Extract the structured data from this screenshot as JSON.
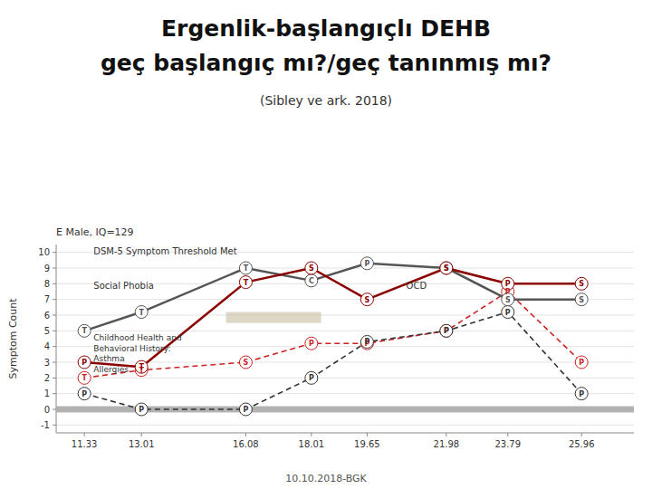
{
  "chart_data": {
    "type": "line",
    "title": "Ergenlik-başlangıçlı DEHB\ngeç başlangıç mı?/geç tanınmış mı?",
    "subtitle": "(Sibley ve ark. 2018)",
    "caption": "E Male, IQ=129",
    "footer": "10.10.2018-BGK",
    "ylabel": "Symptom Count",
    "x": [
      11.33,
      13.01,
      16.08,
      18.01,
      19.65,
      21.98,
      23.79,
      25.96
    ],
    "xlim": [
      10.5,
      27.5
    ],
    "ylim": [
      -1.5,
      10.5
    ],
    "xticks": [
      11.33,
      13.01,
      16.08,
      18.01,
      19.65,
      21.98,
      23.79,
      25.96
    ],
    "yticks": [
      -1,
      0,
      1,
      2,
      3,
      4,
      5,
      6,
      7,
      8,
      9,
      10
    ],
    "grid": true,
    "series": [
      {
        "color": "#555555",
        "line_style": "solid",
        "values": [
          5.0,
          6.2,
          9.0,
          8.2,
          9.3,
          9.0,
          7.0,
          7.0
        ],
        "point_labels": [
          "T",
          "T",
          "T",
          "C",
          "P",
          "S",
          "S",
          "S"
        ]
      },
      {
        "color": "#8b0000",
        "line_style": "solid",
        "values": [
          3.0,
          2.7,
          8.1,
          9.0,
          7.0,
          9.0,
          8.0,
          8.0
        ],
        "point_labels": [
          "P",
          "T",
          "T",
          "S",
          "S",
          "S",
          "P",
          "S"
        ]
      },
      {
        "color": "#cc2222",
        "line_style": "dashed",
        "values": [
          2.0,
          2.5,
          3.0,
          4.2,
          4.2,
          5.0,
          7.5,
          3.0
        ],
        "point_labels": [
          "T",
          "T",
          "S",
          "P",
          "P",
          "P",
          "P",
          "P"
        ]
      },
      {
        "color": "#333333",
        "line_style": "dashed",
        "values": [
          1.0,
          0.0,
          0.0,
          2.0,
          4.3,
          5.0,
          6.2,
          1.0
        ],
        "point_labels": [
          "P",
          "P",
          "P",
          "P",
          "P",
          "P",
          "P",
          "P"
        ]
      }
    ],
    "annotations": [
      {
        "text": "Social Phobia",
        "x": 11.6,
        "y": 7.7
      },
      {
        "text": "OCD",
        "x": 20.8,
        "y": 7.7
      },
      {
        "text": "DSM-5 Symptom Threshold Met",
        "x": 11.6,
        "y": 9.85
      },
      {
        "text": "Childhood Health and\nBehavioral History:\nAsthma\nAllergies",
        "x": 11.6,
        "y": 4.85
      }
    ],
    "highlight": {
      "x": 15.5,
      "y": 5.5,
      "width": 2.8,
      "height": 0.7
    },
    "zero_band": [
      -0.2,
      0.2
    ]
  }
}
